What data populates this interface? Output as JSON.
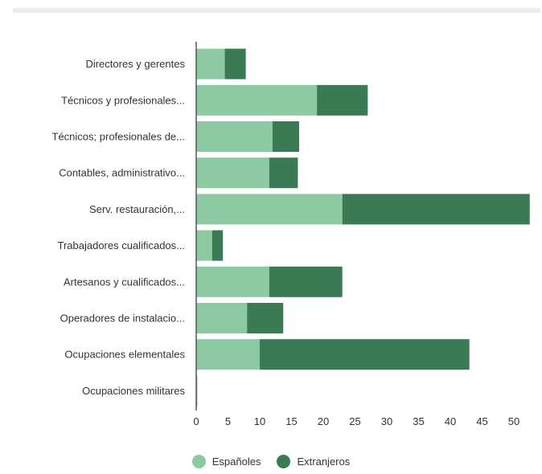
{
  "chart_data": {
    "type": "bar",
    "orientation": "horizontal",
    "stacked": true,
    "categories": [
      "Directores y gerentes",
      "Técnicos y profesionales...",
      "Técnicos; profesionales de...",
      "Contables, administrativo...",
      "Serv. restauración,...",
      "Trabajadores cualificados...",
      "Artesanos y cualificados...",
      "Operadores de instalacio...",
      "Ocupaciones elementales",
      "Ocupaciones militares"
    ],
    "series": [
      {
        "name": "Españoles",
        "color": "#8dc9a3",
        "values": [
          4.5,
          19,
          12,
          11.5,
          23,
          2.5,
          11.5,
          8,
          10,
          0.2
        ]
      },
      {
        "name": "Extranjeros",
        "color": "#3a7a55",
        "values": [
          3.3,
          8,
          4.2,
          4.5,
          29.5,
          1.7,
          11.5,
          5.7,
          33,
          0
        ]
      }
    ],
    "xticks": [
      0,
      5,
      10,
      15,
      20,
      25,
      30,
      35,
      40,
      45,
      50
    ],
    "xlim": [
      0,
      53
    ],
    "legend_position": "bottom",
    "title": "",
    "xlabel": "",
    "ylabel": ""
  }
}
